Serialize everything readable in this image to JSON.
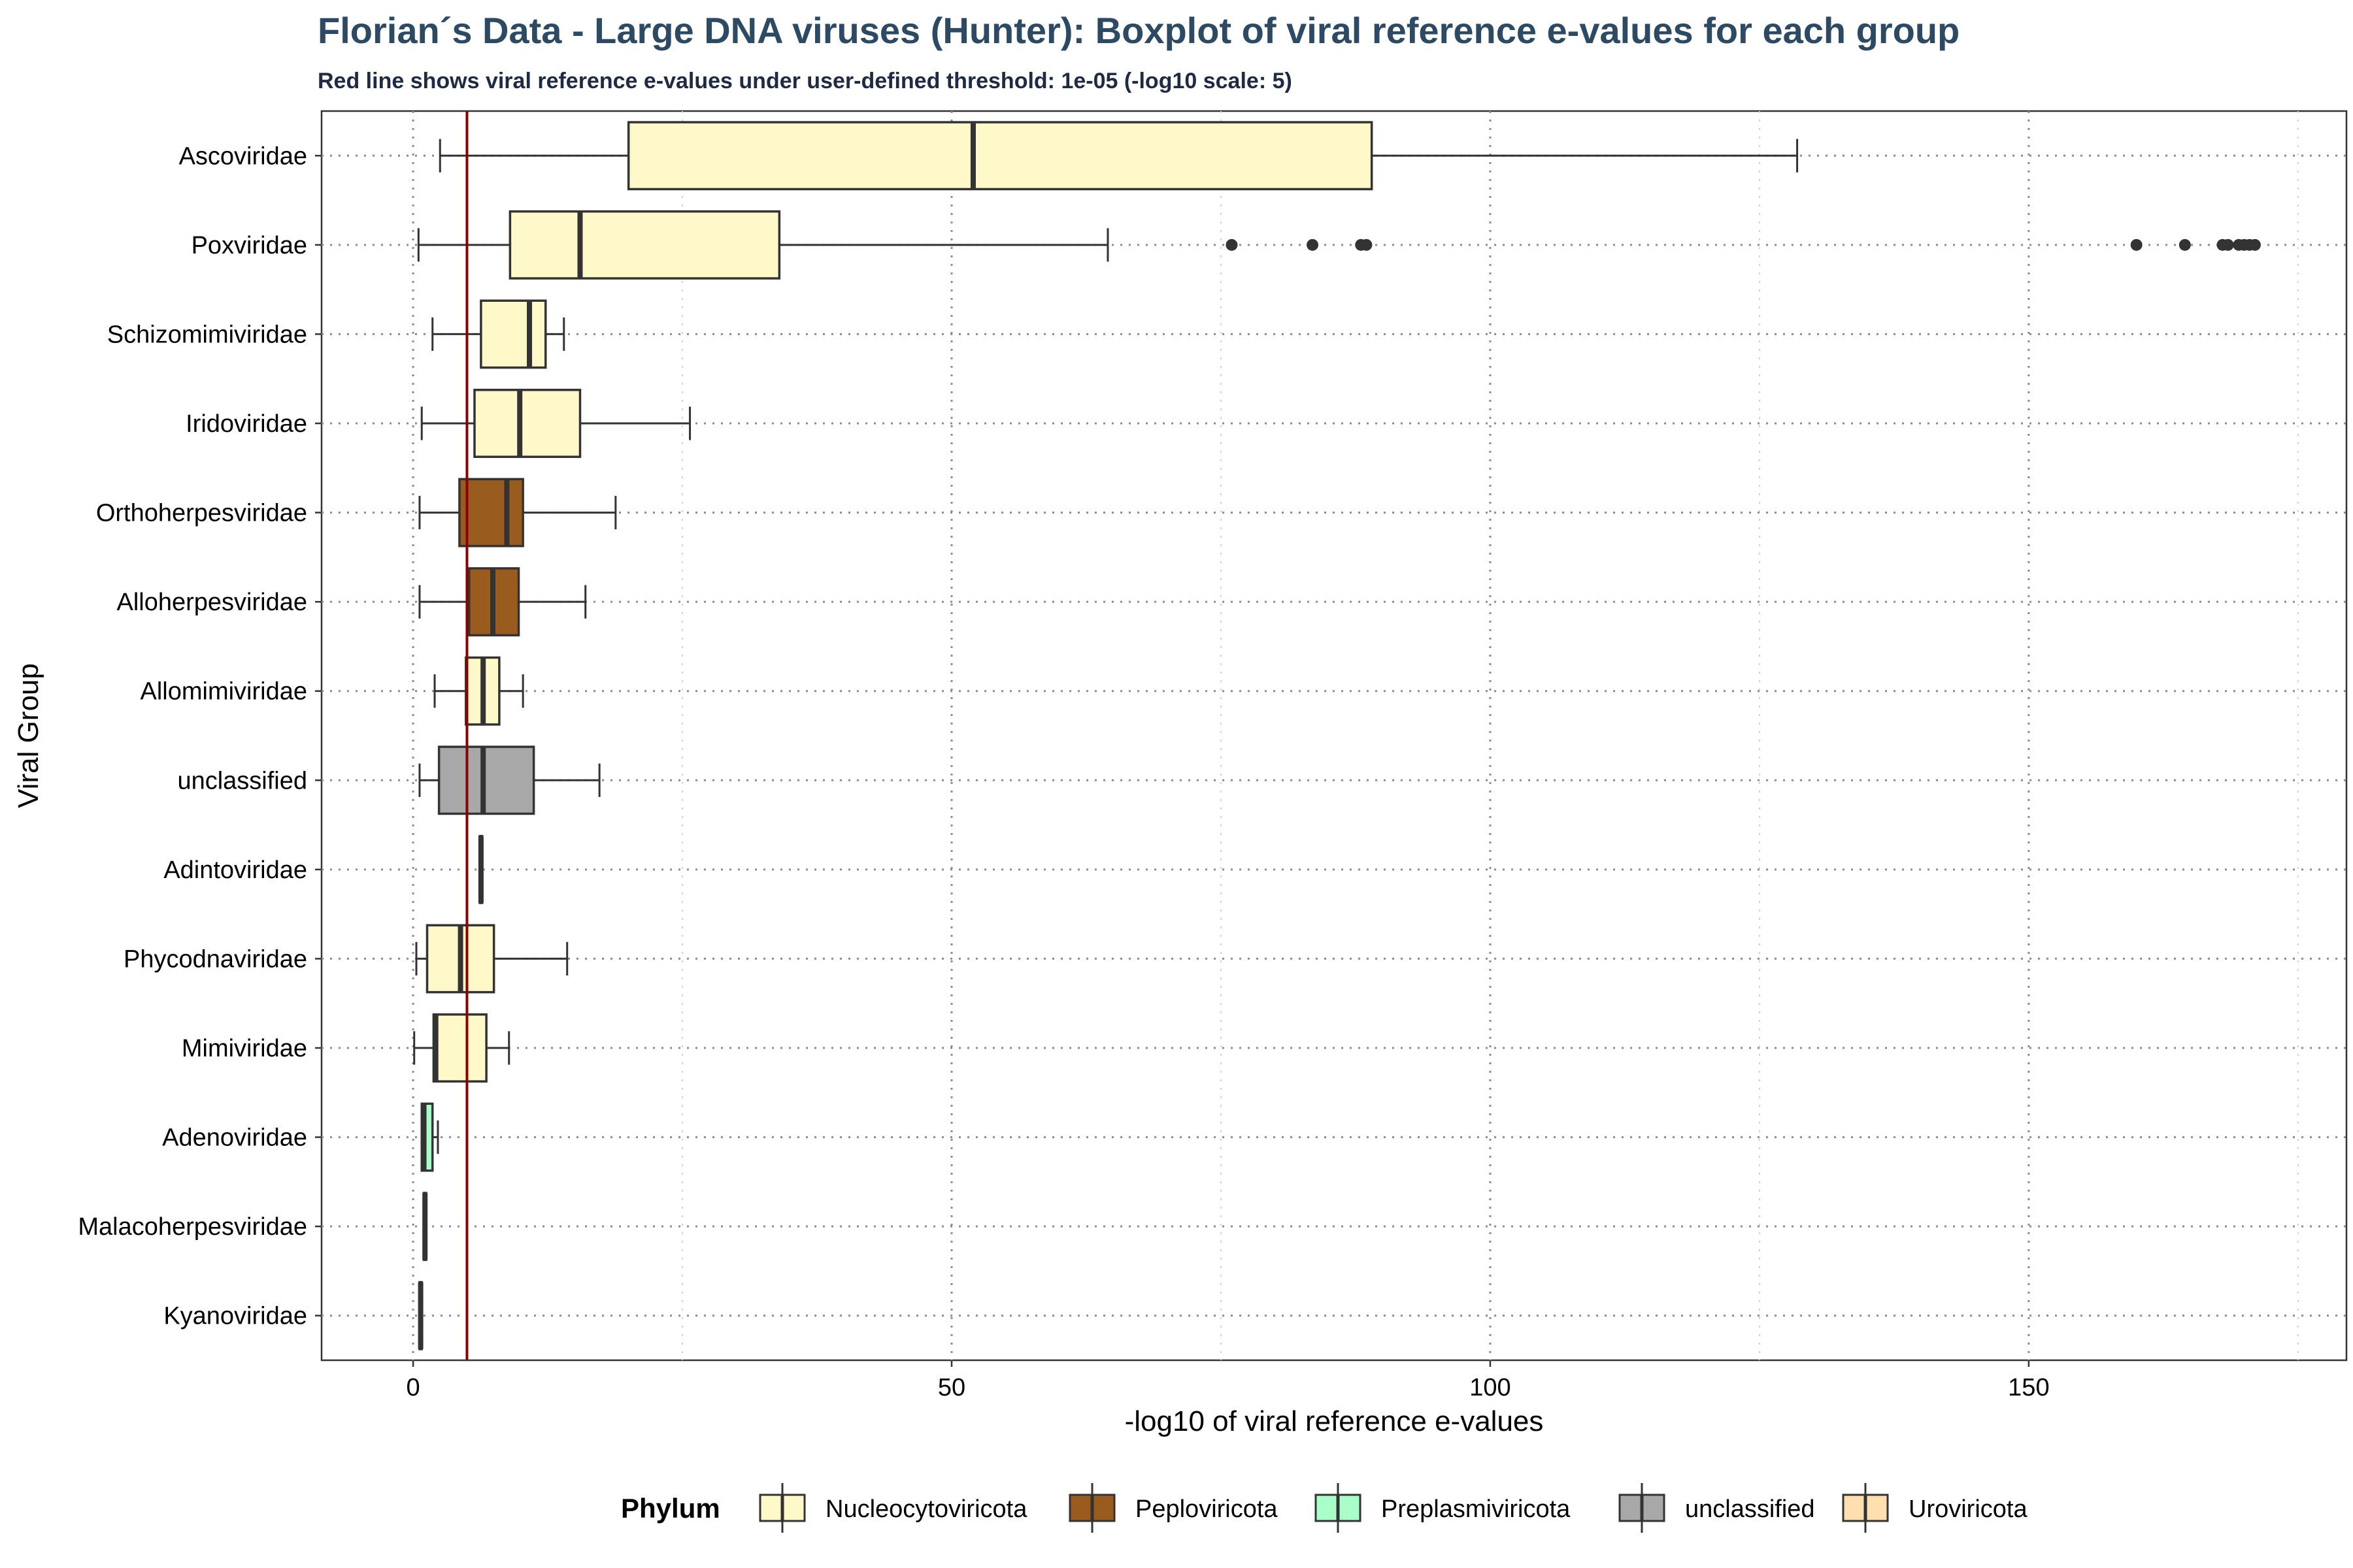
{
  "chart_data": {
    "type": "boxplot",
    "orientation": "horizontal",
    "title": "Florian´s Data - Large DNA viruses (Hunter): Boxplot of viral reference e-values for each group",
    "subtitle": "Red line shows viral reference e-values under user-defined threshold: 1e-05 (-log10 scale: 5)",
    "xlabel": "-log10 of viral reference e-values",
    "ylabel": "Viral Group",
    "xlim": [
      -8.5,
      179.5
    ],
    "xticks": [
      0,
      50,
      100,
      150
    ],
    "grid": true,
    "threshold": 5,
    "threshold_color": "#8b0000",
    "legend": {
      "title": "Phylum",
      "position": "bottom",
      "items": [
        {
          "label": "Nucleocytoviricota",
          "color": "#fff8c8"
        },
        {
          "label": "Peploviricota",
          "color": "#9a5b1e"
        },
        {
          "label": "Preplasmiviricota",
          "color": "#a8ffc7"
        },
        {
          "label": "unclassified",
          "color": "#a8a8a8"
        },
        {
          "label": "Uroviricota",
          "color": "#ffdfb0"
        }
      ]
    },
    "groups": [
      {
        "name": "Ascoviridae",
        "phylum": "Nucleocytoviricota",
        "whisker_low": 2.5,
        "q1": 20,
        "median": 52,
        "q3": 89,
        "whisker_high": 128.5,
        "outliers": []
      },
      {
        "name": "Poxviridae",
        "phylum": "Nucleocytoviricota",
        "whisker_low": 0.5,
        "q1": 9,
        "median": 15.5,
        "q3": 34,
        "whisker_high": 64.5,
        "outliers": [
          76,
          83.5,
          88,
          88.5,
          160,
          164.5,
          168,
          168.5,
          169.5,
          170,
          170.5,
          171
        ]
      },
      {
        "name": "Schizomimiviridae",
        "phylum": "Nucleocytoviricota",
        "whisker_low": 1.8,
        "q1": 6.3,
        "median": 10.8,
        "q3": 12.3,
        "whisker_high": 14,
        "outliers": []
      },
      {
        "name": "Iridoviridae",
        "phylum": "Nucleocytoviricota",
        "whisker_low": 0.8,
        "q1": 5.7,
        "median": 9.9,
        "q3": 15.5,
        "whisker_high": 25.7,
        "outliers": []
      },
      {
        "name": "Orthoherpesviridae",
        "phylum": "Peploviricota",
        "whisker_low": 0.6,
        "q1": 4.3,
        "median": 8.7,
        "q3": 10.2,
        "whisker_high": 18.8,
        "outliers": []
      },
      {
        "name": "Alloherpesviridae",
        "phylum": "Peploviricota",
        "whisker_low": 0.6,
        "q1": 5.2,
        "median": 7.4,
        "q3": 9.8,
        "whisker_high": 16,
        "outliers": []
      },
      {
        "name": "Allomimiviridae",
        "phylum": "Nucleocytoviricota",
        "whisker_low": 2,
        "q1": 4.9,
        "median": 6.5,
        "q3": 8,
        "whisker_high": 10.2,
        "outliers": []
      },
      {
        "name": "unclassified",
        "phylum": "unclassified",
        "whisker_low": 0.6,
        "q1": 2.4,
        "median": 6.5,
        "q3": 11.2,
        "whisker_high": 17.3,
        "outliers": []
      },
      {
        "name": "Adintoviridae",
        "phylum": "Nucleocytoviricota",
        "whisker_low": 6.2,
        "q1": 6.2,
        "median": 6.3,
        "q3": 6.4,
        "whisker_high": 6.4,
        "outliers": []
      },
      {
        "name": "Phycodnaviridae",
        "phylum": "Nucleocytoviricota",
        "whisker_low": 0.3,
        "q1": 1.3,
        "median": 4.4,
        "q3": 7.5,
        "whisker_high": 14.3,
        "outliers": []
      },
      {
        "name": "Mimiviridae",
        "phylum": "Nucleocytoviricota",
        "whisker_low": 0.1,
        "q1": 1.9,
        "median": 2.1,
        "q3": 6.8,
        "whisker_high": 8.9,
        "outliers": []
      },
      {
        "name": "Adenoviridae",
        "phylum": "Preplasmiviricota",
        "whisker_low": 0.8,
        "q1": 0.8,
        "median": 1.0,
        "q3": 1.8,
        "whisker_high": 2.3,
        "outliers": []
      },
      {
        "name": "Malacoherpesviridae",
        "phylum": "Peploviricota",
        "whisker_low": 1.0,
        "q1": 1.0,
        "median": 1.1,
        "q3": 1.2,
        "whisker_high": 1.2,
        "outliers": []
      },
      {
        "name": "Kyanoviridae",
        "phylum": "Uroviricota",
        "whisker_low": 0.6,
        "q1": 0.6,
        "median": 0.7,
        "q3": 0.8,
        "whisker_high": 0.8,
        "outliers": []
      }
    ]
  }
}
